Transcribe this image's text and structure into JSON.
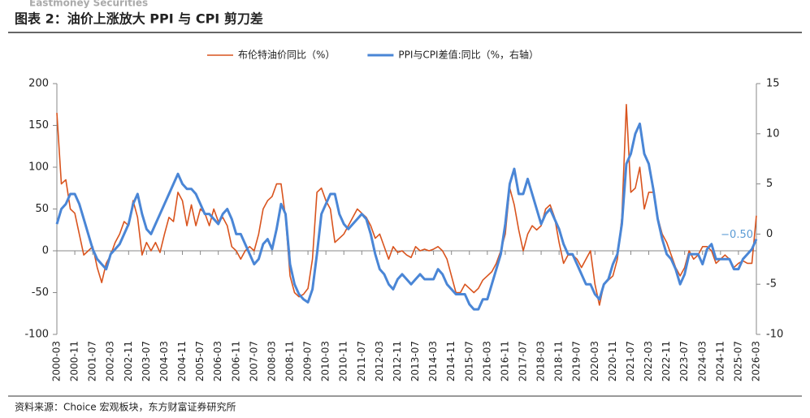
{
  "header_logo": "Eastmoney Securities",
  "source": "资料来源：Choice 宏观板块，东方财富证券研究所",
  "chart_data": {
    "type": "line",
    "title": "图表 2：油价上涨放大 PPI 与 CPI 剪刀差",
    "xlim": [
      "2000-03",
      "2026-03"
    ],
    "x": [
      "2000-03",
      "2000-05",
      "2000-07",
      "2000-09",
      "2000-11",
      "2001-01",
      "2001-03",
      "2001-05",
      "2001-07",
      "2001-09",
      "2001-11",
      "2002-01",
      "2002-03",
      "2002-05",
      "2002-07",
      "2002-09",
      "2002-11",
      "2003-01",
      "2003-03",
      "2003-05",
      "2003-07",
      "2003-09",
      "2003-11",
      "2004-01",
      "2004-03",
      "2004-05",
      "2004-07",
      "2004-09",
      "2004-11",
      "2005-01",
      "2005-03",
      "2005-05",
      "2005-07",
      "2005-09",
      "2005-11",
      "2006-01",
      "2006-03",
      "2006-05",
      "2006-07",
      "2006-09",
      "2006-11",
      "2007-01",
      "2007-03",
      "2007-05",
      "2007-07",
      "2007-09",
      "2007-11",
      "2008-01",
      "2008-03",
      "2008-05",
      "2008-07",
      "2008-09",
      "2008-11",
      "2009-01",
      "2009-03",
      "2009-05",
      "2009-07",
      "2009-09",
      "2009-11",
      "2010-01",
      "2010-03",
      "2010-05",
      "2010-07",
      "2010-09",
      "2010-11",
      "2011-01",
      "2011-03",
      "2011-05",
      "2011-07",
      "2011-09",
      "2011-11",
      "2012-01",
      "2012-03",
      "2012-05",
      "2012-07",
      "2012-09",
      "2012-11",
      "2013-01",
      "2013-03",
      "2013-05",
      "2013-07",
      "2013-09",
      "2013-11",
      "2014-01",
      "2014-03",
      "2014-05",
      "2014-07",
      "2014-09",
      "2014-11",
      "2015-01",
      "2015-03",
      "2015-05",
      "2015-07",
      "2015-09",
      "2015-11",
      "2016-01",
      "2016-03",
      "2016-05",
      "2016-07",
      "2016-09",
      "2016-11",
      "2017-01",
      "2017-03",
      "2017-05",
      "2017-07",
      "2017-09",
      "2017-11",
      "2018-01",
      "2018-03",
      "2018-05",
      "2018-07",
      "2018-09",
      "2018-11",
      "2019-01",
      "2019-03",
      "2019-05",
      "2019-07",
      "2019-09",
      "2019-11",
      "2020-01",
      "2020-03",
      "2020-05",
      "2020-07",
      "2020-09",
      "2020-11",
      "2021-01",
      "2021-03",
      "2021-05",
      "2021-07",
      "2021-09",
      "2021-11",
      "2022-01",
      "2022-03",
      "2022-05",
      "2022-07",
      "2022-09",
      "2022-11",
      "2023-01",
      "2023-03",
      "2023-05",
      "2023-07",
      "2023-09",
      "2023-11",
      "2024-01",
      "2024-03",
      "2024-05",
      "2024-07",
      "2024-09",
      "2024-11",
      "2025-01",
      "2025-03",
      "2025-05",
      "2025-07",
      "2025-09",
      "2025-11",
      "2026-01",
      "2026-03"
    ],
    "xticks": [
      "2000-03",
      "2000-11",
      "2001-07",
      "2002-03",
      "2002-11",
      "2003-07",
      "2004-03",
      "2004-11",
      "2005-07",
      "2006-03",
      "2006-11",
      "2007-07",
      "2008-03",
      "2008-11",
      "2009-07",
      "2010-03",
      "2010-11",
      "2011-07",
      "2012-03",
      "2012-11",
      "2013-07",
      "2014-03",
      "2014-11",
      "2015-07",
      "2016-03",
      "2016-11",
      "2017-07",
      "2018-03",
      "2018-11",
      "2019-07",
      "2020-03",
      "2020-11",
      "2021-07",
      "2022-03",
      "2022-11",
      "2023-07",
      "2024-03",
      "2024-11",
      "2025-07",
      "2026-03"
    ],
    "ylim": [
      -100,
      200
    ],
    "yticks": [
      -100,
      -50,
      0,
      50,
      100,
      150,
      200
    ],
    "y2lim": [
      -10,
      15
    ],
    "y2ticks": [
      -10,
      -5,
      0,
      5,
      10,
      15
    ],
    "legend": "top",
    "series": [
      {
        "name": "布伦特油价同比（%）",
        "color": "#d9541e",
        "values": [
          165,
          80,
          85,
          50,
          45,
          20,
          -5,
          0,
          5,
          -20,
          -38,
          -15,
          -5,
          10,
          20,
          35,
          30,
          60,
          40,
          -5,
          10,
          0,
          10,
          -2,
          20,
          40,
          35,
          70,
          60,
          30,
          55,
          30,
          50,
          45,
          30,
          50,
          35,
          40,
          30,
          5,
          0,
          -10,
          0,
          5,
          0,
          20,
          50,
          60,
          65,
          80,
          80,
          40,
          -30,
          -50,
          -55,
          -52,
          -45,
          -10,
          70,
          75,
          60,
          50,
          10,
          15,
          20,
          30,
          40,
          50,
          45,
          40,
          30,
          15,
          20,
          5,
          -10,
          5,
          -2,
          0,
          -5,
          -8,
          5,
          0,
          2,
          0,
          2,
          5,
          0,
          -10,
          -30,
          -50,
          -50,
          -40,
          -45,
          -50,
          -45,
          -35,
          -30,
          -25,
          -15,
          0,
          20,
          75,
          55,
          25,
          0,
          20,
          30,
          25,
          30,
          50,
          55,
          40,
          10,
          -15,
          -5,
          -5,
          -10,
          -20,
          -10,
          0,
          -40,
          -65,
          -40,
          -35,
          -30,
          -10,
          40,
          175,
          70,
          75,
          100,
          50,
          70,
          70,
          40,
          20,
          10,
          -5,
          -20,
          -30,
          -20,
          0,
          -10,
          -5,
          5,
          5,
          0,
          -15,
          -10,
          -5,
          -10,
          -20,
          -15,
          -12,
          -15,
          -15,
          42
        ]
      },
      {
        "name": "PPI与CPI差值:同比（%，右轴）",
        "color": "#4a86d6",
        "axis": "y2",
        "values": [
          1,
          2.5,
          3,
          4,
          4,
          3,
          1.5,
          0,
          -1.5,
          -2.5,
          -3,
          -3.5,
          -2,
          -1.5,
          -1,
          0,
          1,
          3,
          4,
          2,
          0.5,
          0,
          1,
          2,
          3,
          4,
          5,
          6,
          5,
          4.5,
          4.5,
          4,
          3,
          2,
          2,
          1.5,
          1,
          2,
          2.5,
          1.5,
          0,
          0,
          -1,
          -2,
          -3,
          -2.5,
          -1,
          -0.5,
          -1.5,
          0.5,
          3,
          2,
          -3,
          -5,
          -6,
          -6.5,
          -6.8,
          -5.5,
          -2,
          2,
          3,
          4,
          4,
          2,
          1,
          0.5,
          1,
          1.5,
          2,
          1.5,
          0,
          -2,
          -3.5,
          -4,
          -5,
          -5.5,
          -4.5,
          -4,
          -4.5,
          -5,
          -4.5,
          -4,
          -4.5,
          -4.5,
          -4.5,
          -3.5,
          -4,
          -5,
          -5.5,
          -6,
          -6,
          -6,
          -7,
          -7.5,
          -7.5,
          -6.5,
          -6.5,
          -5,
          -3.5,
          -2,
          1,
          5,
          6.5,
          4,
          4,
          5.5,
          4,
          2.5,
          1,
          2,
          2.5,
          1.5,
          0.5,
          -1,
          -2,
          -2,
          -3,
          -4,
          -5,
          -5,
          -6,
          -6.5,
          -5,
          -4.5,
          -3,
          -2,
          1,
          7,
          8,
          10,
          11,
          8,
          7,
          4.5,
          1.5,
          -0.5,
          -2,
          -2.5,
          -3.5,
          -5,
          -4,
          -2,
          -2,
          -2,
          -3,
          -1.5,
          -1,
          -2.5,
          -2.5,
          -2.5,
          -2.5,
          -3.5,
          -3.5,
          -2.5,
          -2,
          -1.5,
          -0.5
        ]
      }
    ],
    "annotations": [
      {
        "text": "−0.50",
        "x": "2026-03",
        "y": -0.5,
        "axis": "y2",
        "color": "#5b9bd5"
      }
    ]
  }
}
